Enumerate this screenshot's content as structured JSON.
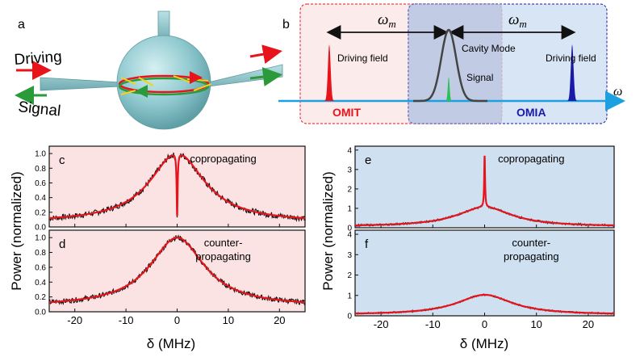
{
  "panel_a": {
    "label": "a",
    "driving_label": "Driving",
    "signal_label": "Signal"
  },
  "panel_b": {
    "label": "b",
    "omega_m_left": "ωm",
    "omega_m_right": "ωm",
    "driving_field_left": "Driving field",
    "driving_field_right": "Driving field",
    "cavity_mode": "Cavity Mode",
    "signal": "Signal",
    "omit": "OMIT",
    "omia": "OMIA",
    "omega_axis": "ω",
    "colors": {
      "omit": "#e8141c",
      "omia": "#1a1aa8",
      "axis": "#1ea0e0",
      "cavity": "#444444",
      "signal": "#2fbf5a"
    }
  },
  "ylabel_left": "Power (normalized)",
  "ylabel_right": "Power (normalized)",
  "xlabel_left": "δ (MHz)",
  "xlabel_right": "δ (MHz)",
  "chart_data": [
    {
      "id": "c",
      "type": "line",
      "label": "c",
      "annotation": "copropagating",
      "xlim": [
        -25,
        25
      ],
      "ylim": [
        0,
        1.1
      ],
      "xticks": [],
      "yticks": [
        0.0,
        0.2,
        0.4,
        0.6,
        0.8,
        1.0
      ],
      "ytick_labels": [
        "0.0",
        "0.2",
        "0.4",
        "0.6",
        "0.8",
        "1.0"
      ],
      "background": "#fbe3e3",
      "lorentz": {
        "amp": 0.95,
        "hwhm": 6.5,
        "offset": 0.06
      },
      "feature": {
        "kind": "dip",
        "depth": 0.86,
        "width": 0.12
      },
      "noise": 0.04
    },
    {
      "id": "d",
      "type": "line",
      "label": "d",
      "annotation": "counter-\npropagating",
      "xlim": [
        -25,
        25
      ],
      "ylim": [
        0,
        1.1
      ],
      "xticks": [
        -20,
        -10,
        0,
        10,
        20
      ],
      "xtick_labels": [
        "-20",
        "-10",
        "0",
        "10",
        "20"
      ],
      "yticks": [
        0.0,
        0.2,
        0.4,
        0.6,
        0.8,
        1.0
      ],
      "ytick_labels": [
        "0.0",
        "0.2",
        "0.4",
        "0.6",
        "0.8",
        "1.0"
      ],
      "background": "#fbe3e3",
      "lorentz": {
        "amp": 0.93,
        "hwhm": 6.5,
        "offset": 0.07
      },
      "feature": null,
      "noise": 0.035
    },
    {
      "id": "e",
      "type": "line",
      "label": "e",
      "annotation": "copropagating",
      "xlim": [
        -25,
        25
      ],
      "ylim": [
        0,
        4.2
      ],
      "xticks": [],
      "yticks": [
        0,
        1,
        2,
        3,
        4
      ],
      "ytick_labels": [
        "0",
        "1",
        "2",
        "3",
        "4"
      ],
      "background": "#cfe0f1",
      "lorentz": {
        "amp": 1.0,
        "hwhm": 6.5,
        "offset": 0.06
      },
      "feature": {
        "kind": "peak",
        "height": 3.65,
        "width": 0.1
      },
      "noise": 0.05
    },
    {
      "id": "f",
      "type": "line",
      "label": "f",
      "annotation": "counter-\npropagating",
      "xlim": [
        -25,
        25
      ],
      "ylim": [
        0,
        4.2
      ],
      "xticks": [
        -20,
        -10,
        0,
        10,
        20
      ],
      "xtick_labels": [
        "-20",
        "-10",
        "0",
        "10",
        "20"
      ],
      "yticks": [
        0,
        1,
        2,
        3,
        4
      ],
      "ytick_labels": [
        "0",
        "1",
        "2",
        "3",
        "4"
      ],
      "background": "#cfe0f1",
      "lorentz": {
        "amp": 0.98,
        "hwhm": 6.5,
        "offset": 0.05
      },
      "feature": null,
      "noise": 0.04
    }
  ]
}
